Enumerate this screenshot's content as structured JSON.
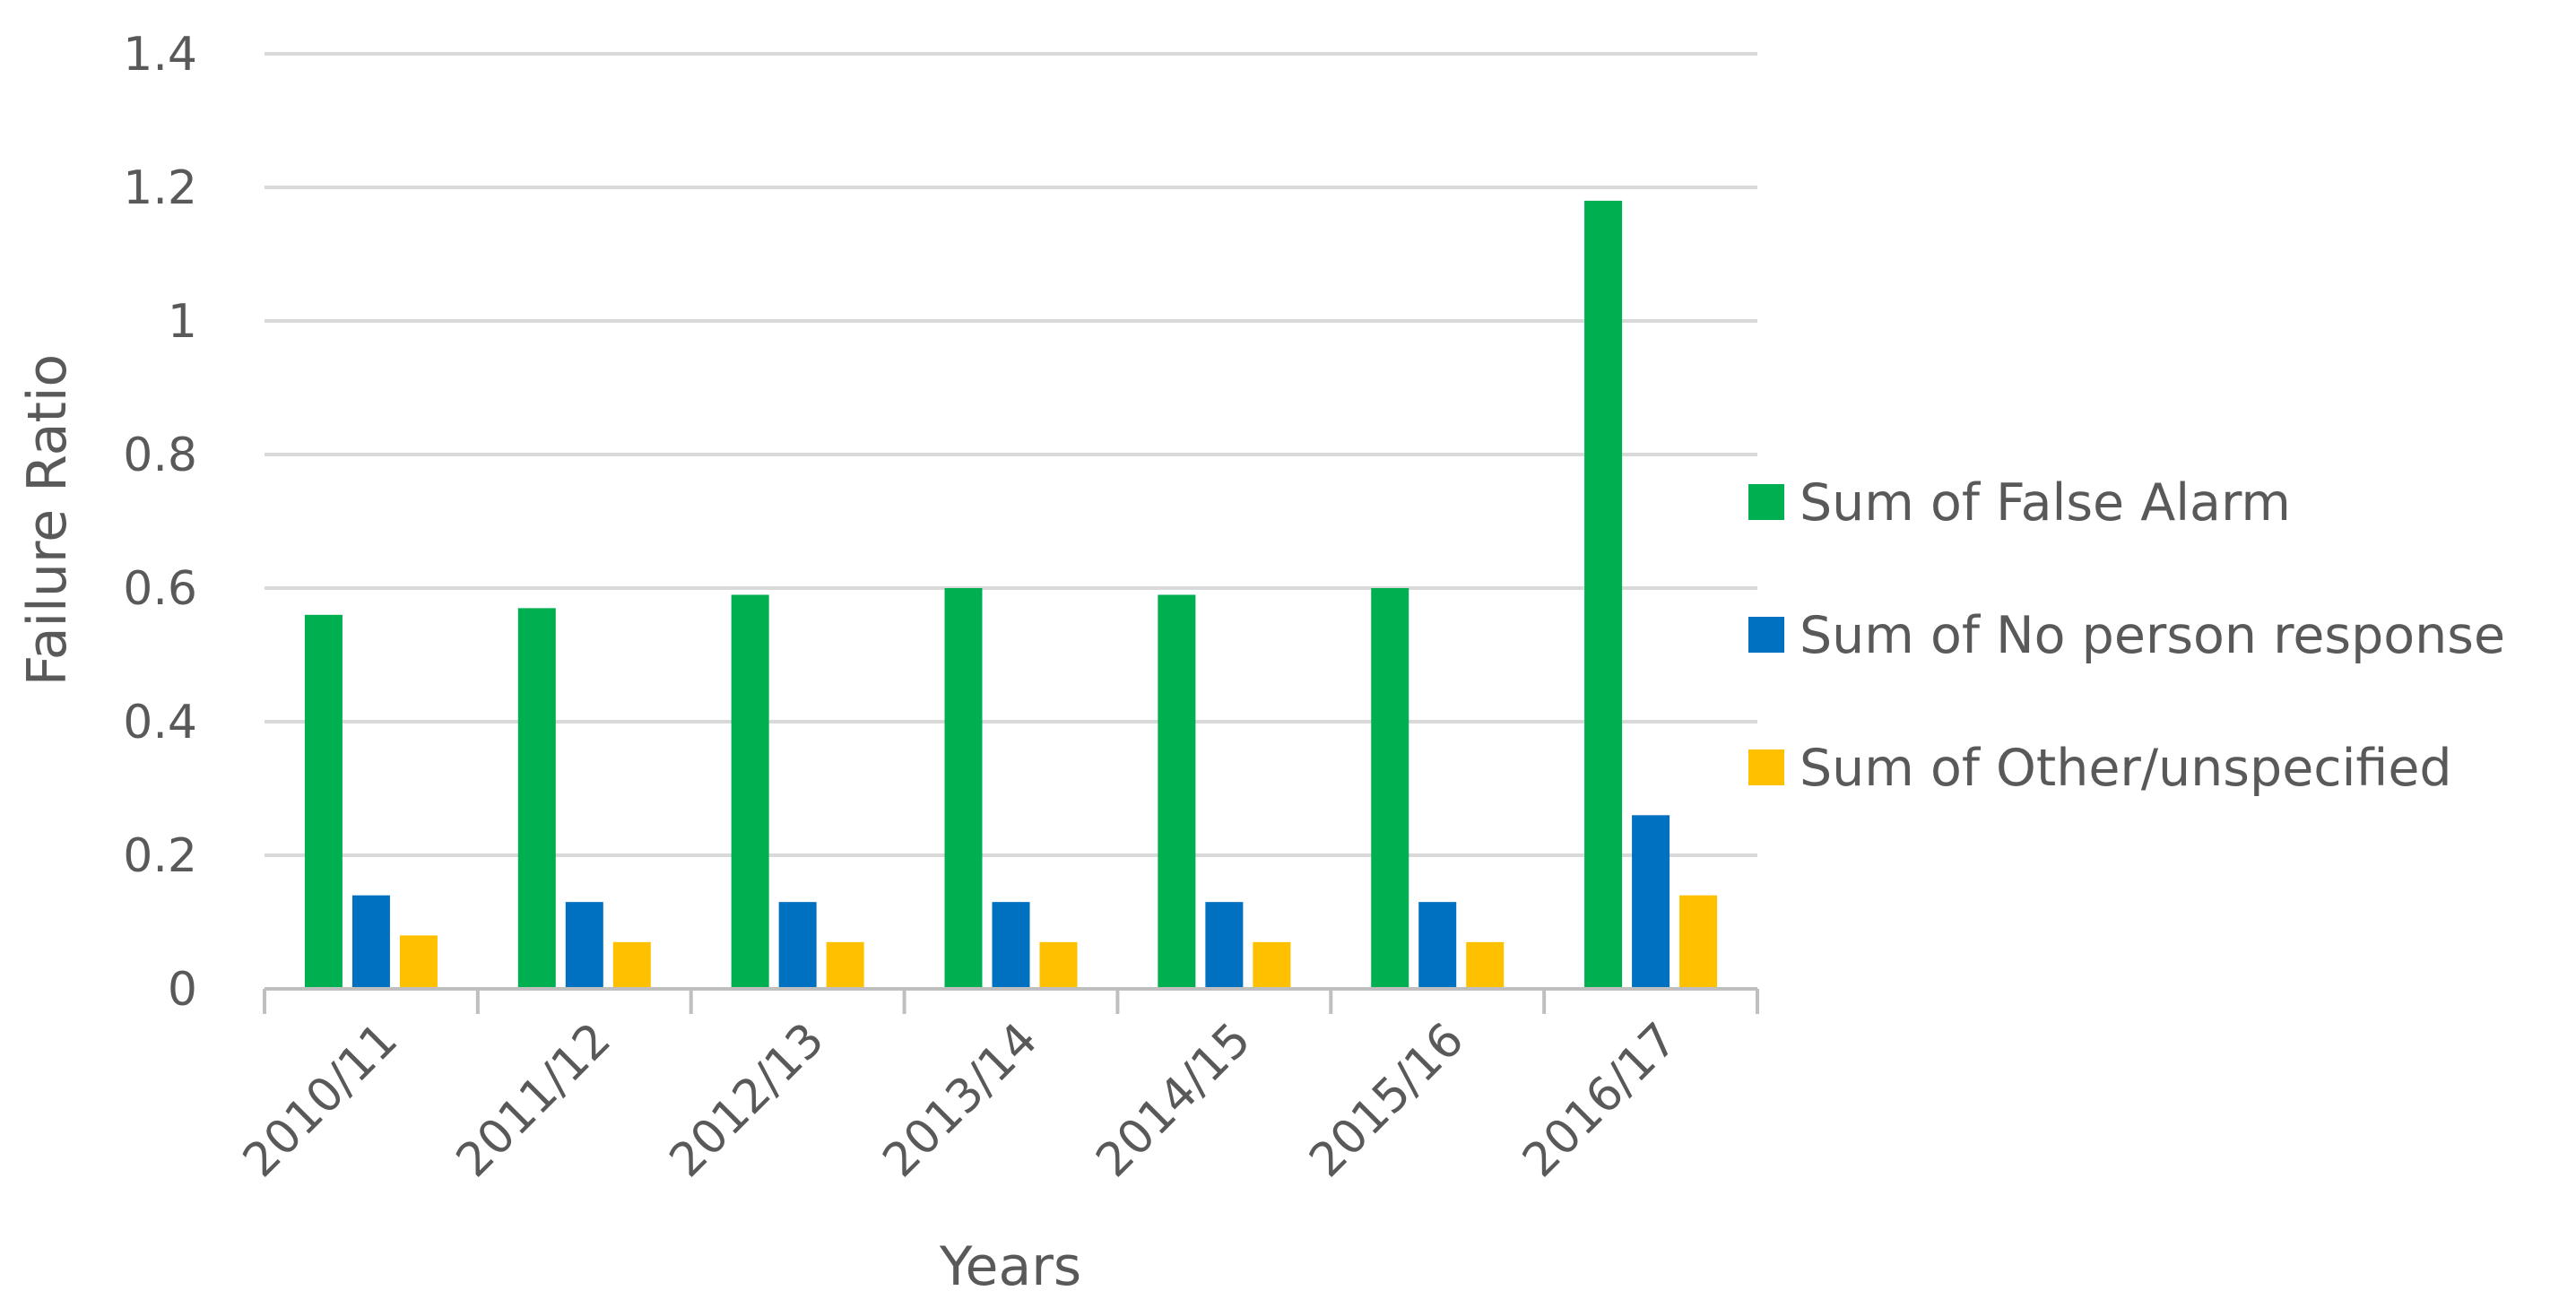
{
  "chart_data": {
    "type": "bar",
    "title": "",
    "xlabel": "Years",
    "ylabel": "Failure Ratio",
    "ylim": [
      0,
      1.4
    ],
    "yticks": [
      "0",
      "0.2",
      "0.4",
      "0.6",
      "0.8",
      "1",
      "1.2",
      "1.4"
    ],
    "categories": [
      "2010/11",
      "2011/12",
      "2012/13",
      "2013/14",
      "2014/15",
      "2015/16",
      "2016/17"
    ],
    "series": [
      {
        "name": "Sum of False  Alarm",
        "color": "#00b050",
        "values": [
          0.56,
          0.57,
          0.59,
          0.6,
          0.59,
          0.6,
          1.18
        ]
      },
      {
        "name": "Sum of No person response",
        "color": "#0070c0",
        "values": [
          0.14,
          0.13,
          0.13,
          0.13,
          0.13,
          0.13,
          0.26
        ]
      },
      {
        "name": "Sum of Other/unspecified",
        "color": "#ffc000",
        "values": [
          0.08,
          0.07,
          0.07,
          0.07,
          0.07,
          0.07,
          0.14
        ]
      }
    ],
    "grid": true,
    "legend_position": "right"
  }
}
